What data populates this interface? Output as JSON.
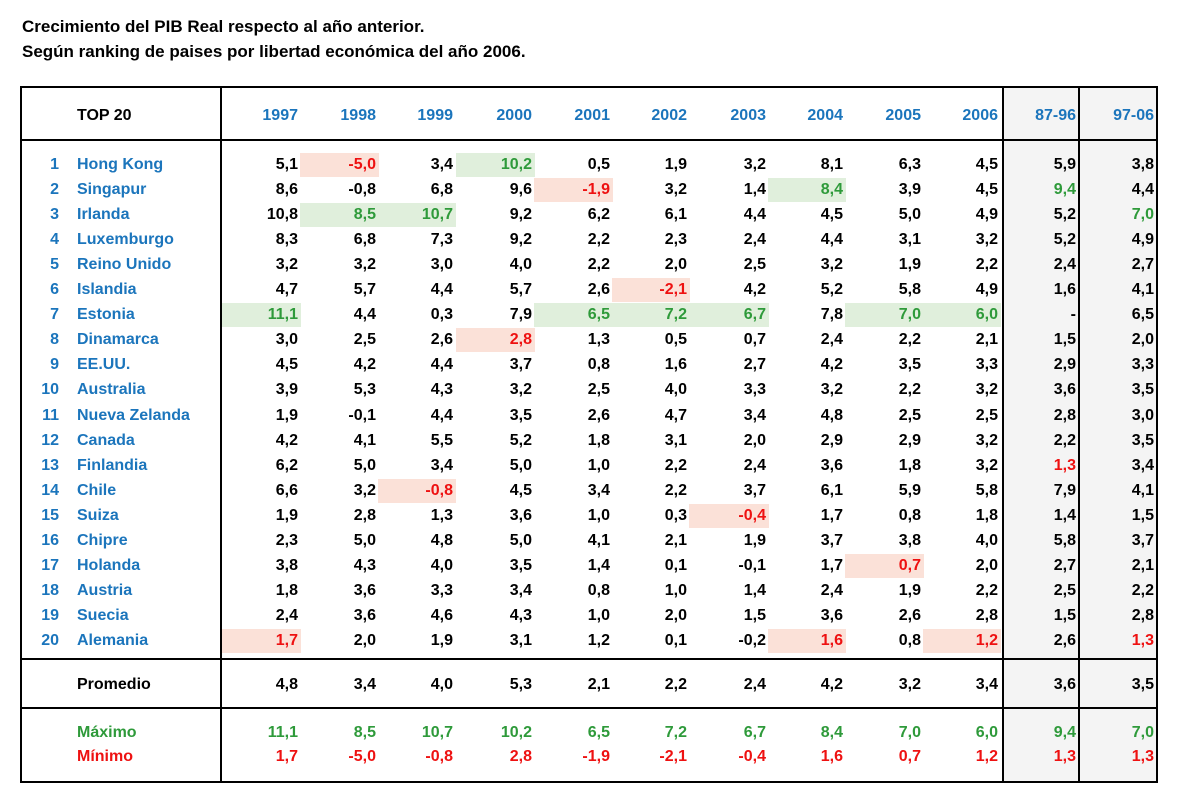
{
  "title_lines": [
    "Crecimiento del PIB Real respecto al año anterior.",
    "Según ranking de paises por libertad económica del año 2006."
  ],
  "colors": {
    "blue": "#1b75bc",
    "red": "#ee1111",
    "green": "#2e9a3a",
    "min_highlight": "#fbe1d8",
    "max_highlight": "#e0efdc",
    "period_shade": "#f4f4f4"
  },
  "header": {
    "top_label": "TOP 20",
    "columns": [
      "1997",
      "1998",
      "1999",
      "2000",
      "2001",
      "2002",
      "2003",
      "2004",
      "2005",
      "2006",
      "87-96",
      "97-06"
    ]
  },
  "rows": [
    {
      "rank": "1",
      "country": "Hong Kong",
      "values": [
        "5,1",
        "-5,0",
        "3,4",
        "10,2",
        "0,5",
        "1,9",
        "3,2",
        "8,1",
        "6,3",
        "4,5",
        "5,9",
        "3,8"
      ]
    },
    {
      "rank": "2",
      "country": "Singapur",
      "values": [
        "8,6",
        "-0,8",
        "6,8",
        "9,6",
        "-1,9",
        "3,2",
        "1,4",
        "8,4",
        "3,9",
        "4,5",
        "9,4",
        "4,4"
      ]
    },
    {
      "rank": "3",
      "country": "Irlanda",
      "values": [
        "10,8",
        "8,5",
        "10,7",
        "9,2",
        "6,2",
        "6,1",
        "4,4",
        "4,5",
        "5,0",
        "4,9",
        "5,2",
        "7,0"
      ]
    },
    {
      "rank": "4",
      "country": "Luxemburgo",
      "values": [
        "8,3",
        "6,8",
        "7,3",
        "9,2",
        "2,2",
        "2,3",
        "2,4",
        "4,4",
        "3,1",
        "3,2",
        "5,2",
        "4,9"
      ]
    },
    {
      "rank": "5",
      "country": "Reino Unido",
      "values": [
        "3,2",
        "3,2",
        "3,0",
        "4,0",
        "2,2",
        "2,0",
        "2,5",
        "3,2",
        "1,9",
        "2,2",
        "2,4",
        "2,7"
      ]
    },
    {
      "rank": "6",
      "country": "Islandia",
      "values": [
        "4,7",
        "5,7",
        "4,4",
        "5,7",
        "2,6",
        "-2,1",
        "4,2",
        "5,2",
        "5,8",
        "4,9",
        "1,6",
        "4,1"
      ]
    },
    {
      "rank": "7",
      "country": "Estonia",
      "values": [
        "11,1",
        "4,4",
        "0,3",
        "7,9",
        "6,5",
        "7,2",
        "6,7",
        "7,8",
        "7,0",
        "6,0",
        "-",
        "6,5"
      ]
    },
    {
      "rank": "8",
      "country": "Dinamarca",
      "values": [
        "3,0",
        "2,5",
        "2,6",
        "2,8",
        "1,3",
        "0,5",
        "0,7",
        "2,4",
        "2,2",
        "2,1",
        "1,5",
        "2,0"
      ]
    },
    {
      "rank": "9",
      "country": "EE.UU.",
      "values": [
        "4,5",
        "4,2",
        "4,4",
        "3,7",
        "0,8",
        "1,6",
        "2,7",
        "4,2",
        "3,5",
        "3,3",
        "2,9",
        "3,3"
      ]
    },
    {
      "rank": "10",
      "country": "Australia",
      "values": [
        "3,9",
        "5,3",
        "4,3",
        "3,2",
        "2,5",
        "4,0",
        "3,3",
        "3,2",
        "2,2",
        "3,2",
        "3,6",
        "3,5"
      ]
    },
    {
      "rank": "11",
      "country": "Nueva Zelanda",
      "values": [
        "1,9",
        "-0,1",
        "4,4",
        "3,5",
        "2,6",
        "4,7",
        "3,4",
        "4,8",
        "2,5",
        "2,5",
        "2,8",
        "3,0"
      ]
    },
    {
      "rank": "12",
      "country": "Canada",
      "values": [
        "4,2",
        "4,1",
        "5,5",
        "5,2",
        "1,8",
        "3,1",
        "2,0",
        "2,9",
        "2,9",
        "3,2",
        "2,2",
        "3,5"
      ]
    },
    {
      "rank": "13",
      "country": "Finlandia",
      "values": [
        "6,2",
        "5,0",
        "3,4",
        "5,0",
        "1,0",
        "2,2",
        "2,4",
        "3,6",
        "1,8",
        "3,2",
        "1,3",
        "3,4"
      ]
    },
    {
      "rank": "14",
      "country": "Chile",
      "values": [
        "6,6",
        "3,2",
        "-0,8",
        "4,5",
        "3,4",
        "2,2",
        "3,7",
        "6,1",
        "5,9",
        "5,8",
        "7,9",
        "4,1"
      ]
    },
    {
      "rank": "15",
      "country": "Suiza",
      "values": [
        "1,9",
        "2,8",
        "1,3",
        "3,6",
        "1,0",
        "0,3",
        "-0,4",
        "1,7",
        "0,8",
        "1,8",
        "1,4",
        "1,5"
      ]
    },
    {
      "rank": "16",
      "country": "Chipre",
      "values": [
        "2,3",
        "5,0",
        "4,8",
        "5,0",
        "4,1",
        "2,1",
        "1,9",
        "3,7",
        "3,8",
        "4,0",
        "5,8",
        "3,7"
      ]
    },
    {
      "rank": "17",
      "country": "Holanda",
      "values": [
        "3,8",
        "4,3",
        "4,0",
        "3,5",
        "1,4",
        "0,1",
        "-0,1",
        "1,7",
        "0,7",
        "2,0",
        "2,7",
        "2,1"
      ]
    },
    {
      "rank": "18",
      "country": "Austria",
      "values": [
        "1,8",
        "3,6",
        "3,3",
        "3,4",
        "0,8",
        "1,0",
        "1,4",
        "2,4",
        "1,9",
        "2,2",
        "2,5",
        "2,2"
      ]
    },
    {
      "rank": "19",
      "country": "Suecia",
      "values": [
        "2,4",
        "3,6",
        "4,6",
        "4,3",
        "1,0",
        "2,0",
        "1,5",
        "3,6",
        "2,6",
        "2,8",
        "1,5",
        "2,8"
      ]
    },
    {
      "rank": "20",
      "country": "Alemania",
      "values": [
        "1,7",
        "2,0",
        "1,9",
        "3,1",
        "1,2",
        "0,1",
        "-0,2",
        "1,6",
        "0,8",
        "1,2",
        "2,6",
        "1,3"
      ]
    }
  ],
  "summary": {
    "average": {
      "label": "Promedio",
      "values": [
        "4,8",
        "3,4",
        "4,0",
        "5,3",
        "2,1",
        "2,2",
        "2,4",
        "4,2",
        "3,2",
        "3,4",
        "3,6",
        "3,5"
      ]
    },
    "maximum": {
      "label": "Máximo",
      "values": [
        "11,1",
        "8,5",
        "10,7",
        "10,2",
        "6,5",
        "7,2",
        "6,7",
        "8,4",
        "7,0",
        "6,0",
        "9,4",
        "7,0"
      ]
    },
    "minimum": {
      "label": "Mínimo",
      "values": [
        "1,7",
        "-5,0",
        "-0,8",
        "2,8",
        "-1,9",
        "-2,1",
        "-0,4",
        "1,6",
        "0,7",
        "1,2",
        "1,3",
        "1,3"
      ]
    }
  },
  "highlights": {
    "max_by_column": [
      6,
      2,
      2,
      0,
      6,
      6,
      6,
      1,
      6,
      6,
      1,
      2
    ],
    "min_by_column": [
      19,
      0,
      13,
      7,
      1,
      5,
      14,
      19,
      16,
      19,
      12,
      19
    ],
    "background_shading_year_columns": true
  }
}
